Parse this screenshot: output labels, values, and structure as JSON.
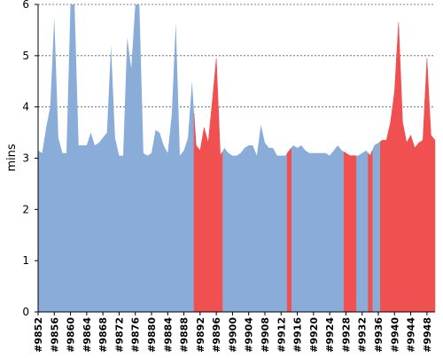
{
  "chart_data": {
    "type": "area",
    "title": "",
    "xlabel": "",
    "ylabel": "mins",
    "ylim": [
      0,
      6
    ],
    "grid": true,
    "legend": "none",
    "x_start": 9852,
    "x_end": 9950,
    "x_step": 1,
    "yticks": [
      "0",
      "1",
      "2",
      "3",
      "4",
      "5",
      "6"
    ],
    "xticks": [
      "#9852",
      "#9856",
      "#9860",
      "#9864",
      "#9868",
      "#9872",
      "#9876",
      "#9880",
      "#9884",
      "#9888",
      "#9892",
      "#9896",
      "#9900",
      "#9904",
      "#9908",
      "#9912",
      "#9916",
      "#9920",
      "#9924",
      "#9928",
      "#9932",
      "#9936",
      "#9940",
      "#9944",
      "#9948"
    ],
    "values": [
      3.15,
      3.1,
      3.6,
      4.0,
      5.75,
      3.4,
      3.1,
      3.1,
      6.0,
      6.0,
      3.25,
      3.25,
      3.25,
      3.5,
      3.25,
      3.3,
      3.4,
      3.5,
      5.2,
      3.4,
      3.05,
      3.05,
      5.35,
      4.75,
      6.0,
      6.0,
      3.1,
      3.05,
      3.1,
      3.55,
      3.5,
      3.25,
      3.1,
      3.85,
      5.65,
      3.05,
      3.15,
      3.4,
      4.5,
      3.25,
      3.15,
      3.6,
      3.3,
      4.1,
      4.95,
      3.05,
      3.2,
      3.1,
      3.05,
      3.05,
      3.1,
      3.2,
      3.25,
      3.25,
      3.05,
      3.65,
      3.3,
      3.2,
      3.2,
      3.05,
      3.05,
      3.05,
      3.15,
      3.25,
      3.2,
      3.25,
      3.15,
      3.1,
      3.1,
      3.1,
      3.1,
      3.1,
      3.05,
      3.15,
      3.25,
      3.15,
      3.1,
      3.05,
      3.05,
      3.05,
      3.1,
      3.15,
      3.05,
      3.25,
      3.3,
      3.35,
      3.35,
      3.7,
      4.3,
      5.65,
      3.7,
      3.3,
      3.45,
      3.2,
      3.3,
      3.35,
      4.95,
      3.45,
      3.35
    ],
    "series": [
      {
        "color": "#8aacd8"
      },
      {
        "color": "#f05050"
      }
    ],
    "highlight_ranges": [
      [
        9891,
        9897
      ],
      [
        9914,
        9914
      ],
      [
        9928,
        9930
      ],
      [
        9934,
        9934
      ],
      [
        9937,
        9950
      ]
    ]
  }
}
